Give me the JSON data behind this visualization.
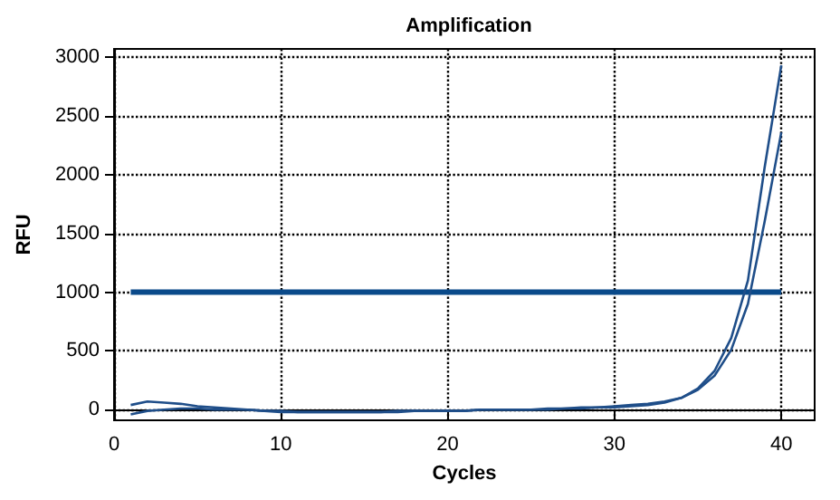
{
  "chart_data": {
    "type": "line",
    "title": "Amplification",
    "xlabel": "Cycles",
    "ylabel": "RFU",
    "x": [
      1,
      2,
      3,
      4,
      5,
      6,
      7,
      8,
      9,
      10,
      11,
      12,
      13,
      14,
      15,
      16,
      17,
      18,
      19,
      20,
      21,
      22,
      23,
      24,
      25,
      26,
      27,
      28,
      29,
      30,
      31,
      32,
      33,
      34,
      35,
      36,
      37,
      38,
      39,
      40
    ],
    "series": [
      {
        "color": "#1f4e89",
        "values": [
          -40,
          -10,
          0,
          10,
          10,
          0,
          0,
          0,
          -10,
          -20,
          -20,
          -20,
          -20,
          -20,
          -20,
          -20,
          -20,
          -10,
          -10,
          -10,
          -10,
          0,
          0,
          0,
          0,
          10,
          10,
          20,
          20,
          30,
          40,
          50,
          70,
          100,
          180,
          330,
          610,
          1100,
          2060,
          2930
        ]
      },
      {
        "color": "#1f4e89",
        "values": [
          40,
          70,
          60,
          50,
          30,
          20,
          10,
          0,
          -10,
          -10,
          -20,
          -20,
          -20,
          -20,
          -20,
          -20,
          -10,
          -10,
          -10,
          -10,
          -10,
          0,
          0,
          0,
          0,
          0,
          10,
          10,
          20,
          20,
          30,
          40,
          60,
          100,
          170,
          290,
          510,
          900,
          1600,
          2360
        ]
      }
    ],
    "ref_lines": [
      {
        "axis": "y",
        "value": 1000,
        "color": "#0a4a8a"
      }
    ],
    "xlim": [
      0,
      42
    ],
    "xticks": [
      0,
      10,
      20,
      30,
      40
    ],
    "ylim": [
      -90,
      3070
    ],
    "yticks": [
      0,
      500,
      1000,
      1500,
      2000,
      2500,
      3000
    ],
    "grid": true,
    "marker": "none",
    "line_style": "solid"
  }
}
